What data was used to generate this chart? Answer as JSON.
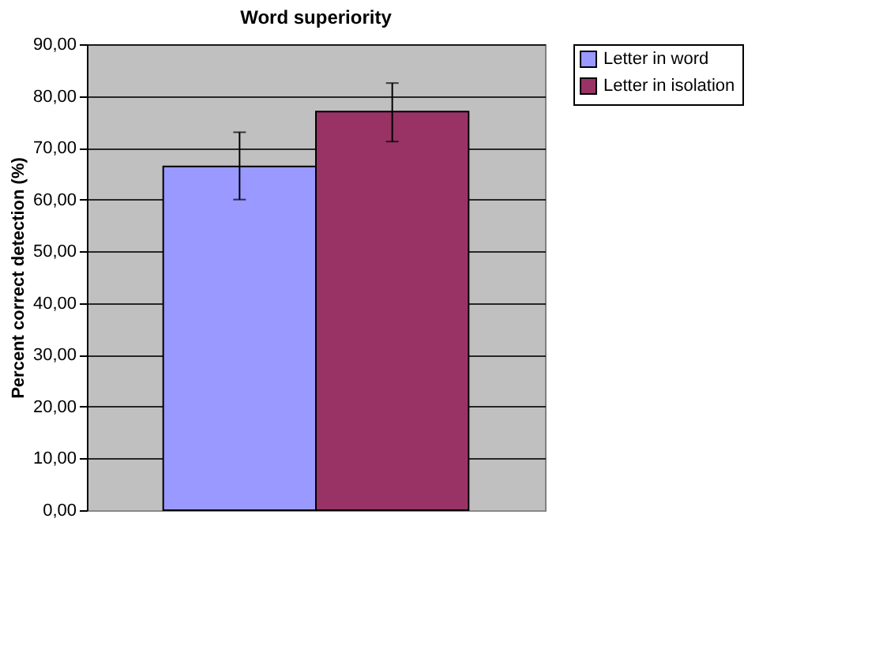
{
  "chart_data": {
    "type": "bar",
    "title": "Word superiority",
    "ylabel": "Percent correct detection (%)",
    "categories": [
      null
    ],
    "series": [
      {
        "name": "Letter in word",
        "color": "#9999ff",
        "values": [
          66.4
        ],
        "errors": [
          [
            60.0,
            73.0
          ]
        ]
      },
      {
        "name": "Letter in isolation",
        "color": "#993366",
        "values": [
          77.0
        ],
        "errors": [
          [
            71.2,
            82.5
          ]
        ]
      }
    ],
    "ylim": [
      0,
      90
    ],
    "yticks": [
      {
        "value": 0,
        "label": "0,00"
      },
      {
        "value": 10,
        "label": "10,00"
      },
      {
        "value": 20,
        "label": "20,00"
      },
      {
        "value": 30,
        "label": "30,00"
      },
      {
        "value": 40,
        "label": "40,00"
      },
      {
        "value": 50,
        "label": "50,00"
      },
      {
        "value": 60,
        "label": "60,00"
      },
      {
        "value": 70,
        "label": "70,00"
      },
      {
        "value": 80,
        "label": "80,00"
      },
      {
        "value": 90,
        "label": "90,00"
      }
    ],
    "grid": "y",
    "legend": "right"
  }
}
